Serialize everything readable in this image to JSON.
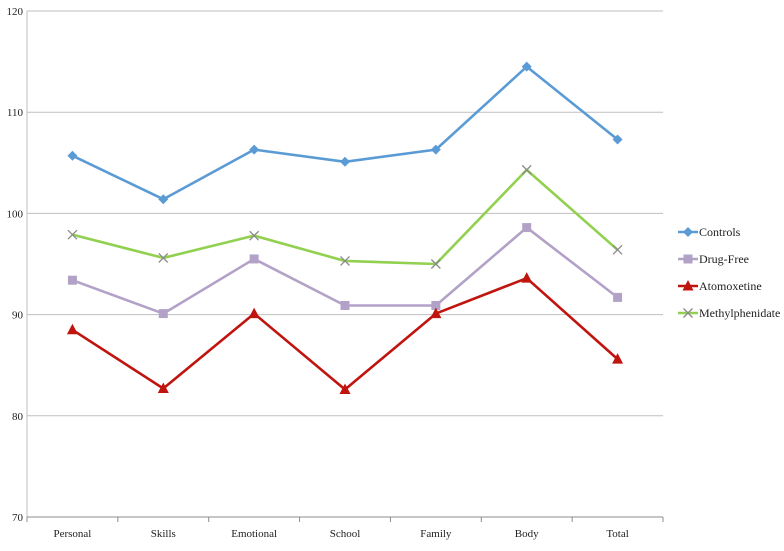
{
  "chart_data": {
    "type": "line",
    "categories": [
      "Personal",
      "Skills",
      "Emotional",
      "School",
      "Family",
      "Body",
      "Total"
    ],
    "ylim": [
      70,
      120
    ],
    "yticks": [
      70,
      80,
      90,
      100,
      110,
      120
    ],
    "grid": true,
    "legend_position": "right",
    "series": [
      {
        "name": "Controls",
        "color": "#5B9BD5",
        "marker": "diamond",
        "values": [
          105.7,
          101.4,
          106.3,
          105.1,
          106.3,
          114.5,
          107.3
        ]
      },
      {
        "name": "Drug-Free",
        "color": "#B3A2C7",
        "marker": "square",
        "values": [
          93.4,
          90.1,
          95.5,
          90.9,
          90.9,
          98.6,
          91.7
        ]
      },
      {
        "name": "Atomoxetine",
        "color": "#C0140E",
        "marker": "triangle",
        "values": [
          88.5,
          82.7,
          90.1,
          82.6,
          90.1,
          93.6,
          85.6
        ]
      },
      {
        "name": "Methylphenidate",
        "color": "#92D050",
        "marker": "x",
        "values": [
          97.9,
          95.6,
          97.8,
          95.3,
          95.0,
          104.3,
          96.4
        ]
      }
    ]
  }
}
